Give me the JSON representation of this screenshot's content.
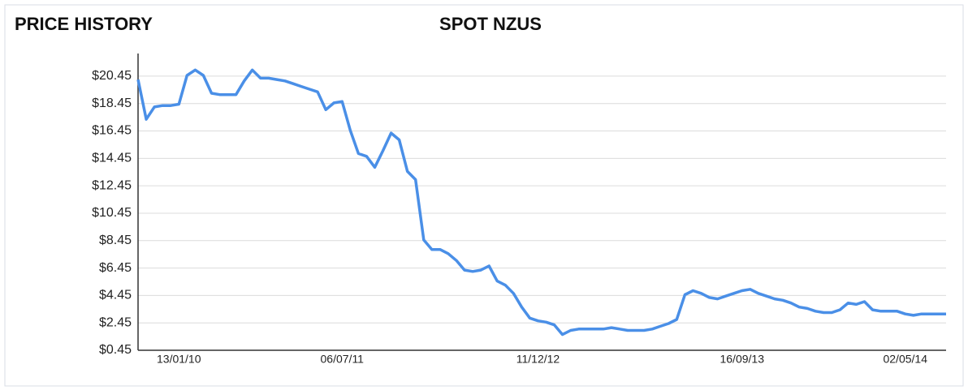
{
  "chart_data": {
    "type": "line",
    "title": "PRICE HISTORY",
    "subtitle": "SPOT NZUS",
    "categories": [
      null,
      null,
      null,
      null,
      null,
      "13/01/10",
      null,
      null,
      null,
      null,
      null,
      null,
      null,
      null,
      null,
      null,
      null,
      null,
      null,
      null,
      null,
      null,
      null,
      null,
      null,
      "06/07/11",
      null,
      null,
      null,
      null,
      null,
      null,
      null,
      null,
      null,
      null,
      null,
      null,
      null,
      null,
      null,
      null,
      null,
      null,
      null,
      null,
      null,
      null,
      null,
      "11/12/12",
      null,
      null,
      null,
      null,
      null,
      null,
      null,
      null,
      null,
      null,
      null,
      null,
      null,
      null,
      null,
      null,
      null,
      null,
      null,
      null,
      null,
      null,
      null,
      null,
      "16/09/13",
      null,
      null,
      null,
      null,
      null,
      null,
      null,
      null,
      null,
      null,
      null,
      null,
      null,
      null,
      null,
      null,
      null,
      null,
      null,
      "02/05/14",
      null,
      null,
      null,
      null,
      null
    ],
    "series": [
      {
        "name": "SPOT NZUS",
        "color": "#4a8fe7",
        "values": [
          20.2,
          17.3,
          18.2,
          18.3,
          18.3,
          18.4,
          20.5,
          20.9,
          20.5,
          19.2,
          19.1,
          19.1,
          19.1,
          20.1,
          20.9,
          20.3,
          20.3,
          20.2,
          20.1,
          19.9,
          19.7,
          19.5,
          19.3,
          18.0,
          18.5,
          18.6,
          16.5,
          14.8,
          14.6,
          13.8,
          15.0,
          16.3,
          15.8,
          13.5,
          12.9,
          8.5,
          7.8,
          7.8,
          7.5,
          7.0,
          6.3,
          6.2,
          6.3,
          6.6,
          5.5,
          5.2,
          4.6,
          3.6,
          2.8,
          2.6,
          2.5,
          2.3,
          1.6,
          1.9,
          2.0,
          2.0,
          2.0,
          2.0,
          2.1,
          2.0,
          1.9,
          1.9,
          1.9,
          2.0,
          2.2,
          2.4,
          2.7,
          4.5,
          4.8,
          4.6,
          4.3,
          4.2,
          4.4,
          4.6,
          4.8,
          4.9,
          4.6,
          4.4,
          4.2,
          4.1,
          3.9,
          3.6,
          3.5,
          3.3,
          3.2,
          3.2,
          3.4,
          3.9,
          3.8,
          4.0,
          3.4,
          3.3,
          3.3,
          3.3,
          3.1,
          3.0,
          3.1,
          3.1,
          3.1,
          3.1
        ]
      }
    ],
    "ylim": [
      0.45,
      22.1
    ],
    "yticks": [
      {
        "value": 0.45,
        "label": "$0.45"
      },
      {
        "value": 2.45,
        "label": "$2.45"
      },
      {
        "value": 4.45,
        "label": "$4.45"
      },
      {
        "value": 6.45,
        "label": "$6.45"
      },
      {
        "value": 8.45,
        "label": "$8.45"
      },
      {
        "value": 10.45,
        "label": "$10.45"
      },
      {
        "value": 12.45,
        "label": "$12.45"
      },
      {
        "value": 14.45,
        "label": "$14.45"
      },
      {
        "value": 16.45,
        "label": "$16.45"
      },
      {
        "value": 18.45,
        "label": "$18.45"
      },
      {
        "value": 20.45,
        "label": "$20.45"
      }
    ],
    "grid": true
  }
}
